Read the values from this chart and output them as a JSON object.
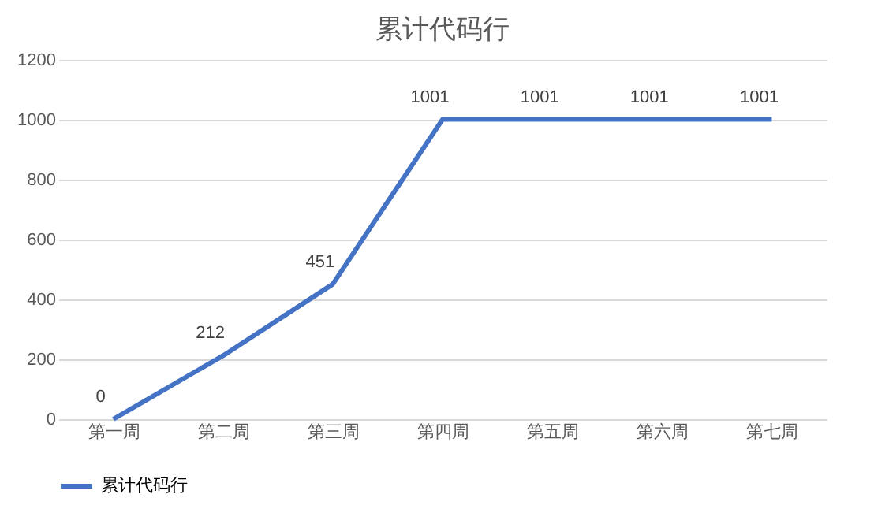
{
  "chart_data": {
    "type": "line",
    "title": "累计代码行",
    "categories": [
      "第一周",
      "第二周",
      "第三周",
      "第四周",
      "第五周",
      "第六周",
      "第七周"
    ],
    "series": [
      {
        "name": "累计代码行",
        "color": "#4472c4",
        "values": [
          0,
          212,
          451,
          1001,
          1001,
          1001,
          1001
        ]
      }
    ],
    "ylim": [
      0,
      1200
    ],
    "yticks": [
      0,
      200,
      400,
      600,
      800,
      1000,
      1200
    ],
    "grid": "y",
    "legend": "bottom",
    "data_labels": true,
    "marker": "none",
    "line_style": "solid"
  }
}
